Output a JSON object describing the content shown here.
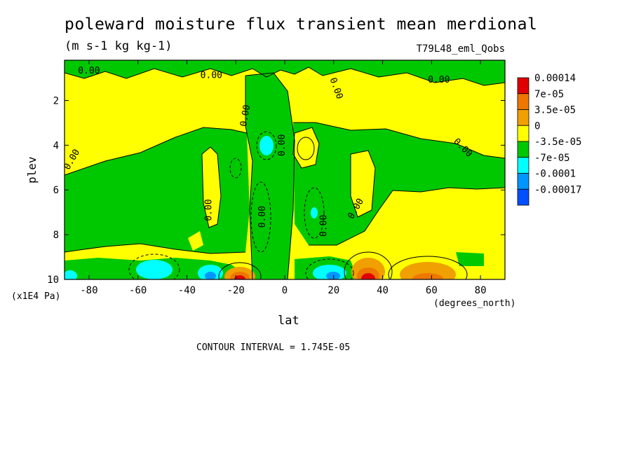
{
  "chart_data": {
    "type": "heatmap",
    "title": "poleward moisture flux transient mean merdional",
    "units": "(m s-1 kg kg-1)",
    "experiment": "T79L48_eml_Qobs",
    "xlabel": "lat",
    "x_units": "(degrees_north)",
    "ylabel": "plev",
    "y_units": "(x1E4 Pa)",
    "xlim": [
      -90,
      90
    ],
    "ylim": [
      0.2,
      10
    ],
    "y_inverted": true,
    "x_ticks": [
      "-80",
      "-60",
      "-40",
      "-20",
      "0",
      "20",
      "40",
      "60",
      "80"
    ],
    "y_ticks": [
      "2",
      "4",
      "6",
      "8",
      "10"
    ],
    "contour_interval": "CONTOUR INTERVAL = 1.745E-05",
    "contour_label": "0.00",
    "legend": {
      "labels": [
        "0.00014",
        "7e-05",
        "3.5e-05",
        "0",
        "-3.5e-05",
        "-7e-05",
        "-0.0001",
        "-0.00017"
      ],
      "colors": [
        "#e00000",
        "#ee7700",
        "#f0a000",
        "#ffff00",
        "#00c800",
        "#00ffff",
        "#0096ff",
        "#0050ff"
      ]
    },
    "background_color": "#ffff00"
  }
}
